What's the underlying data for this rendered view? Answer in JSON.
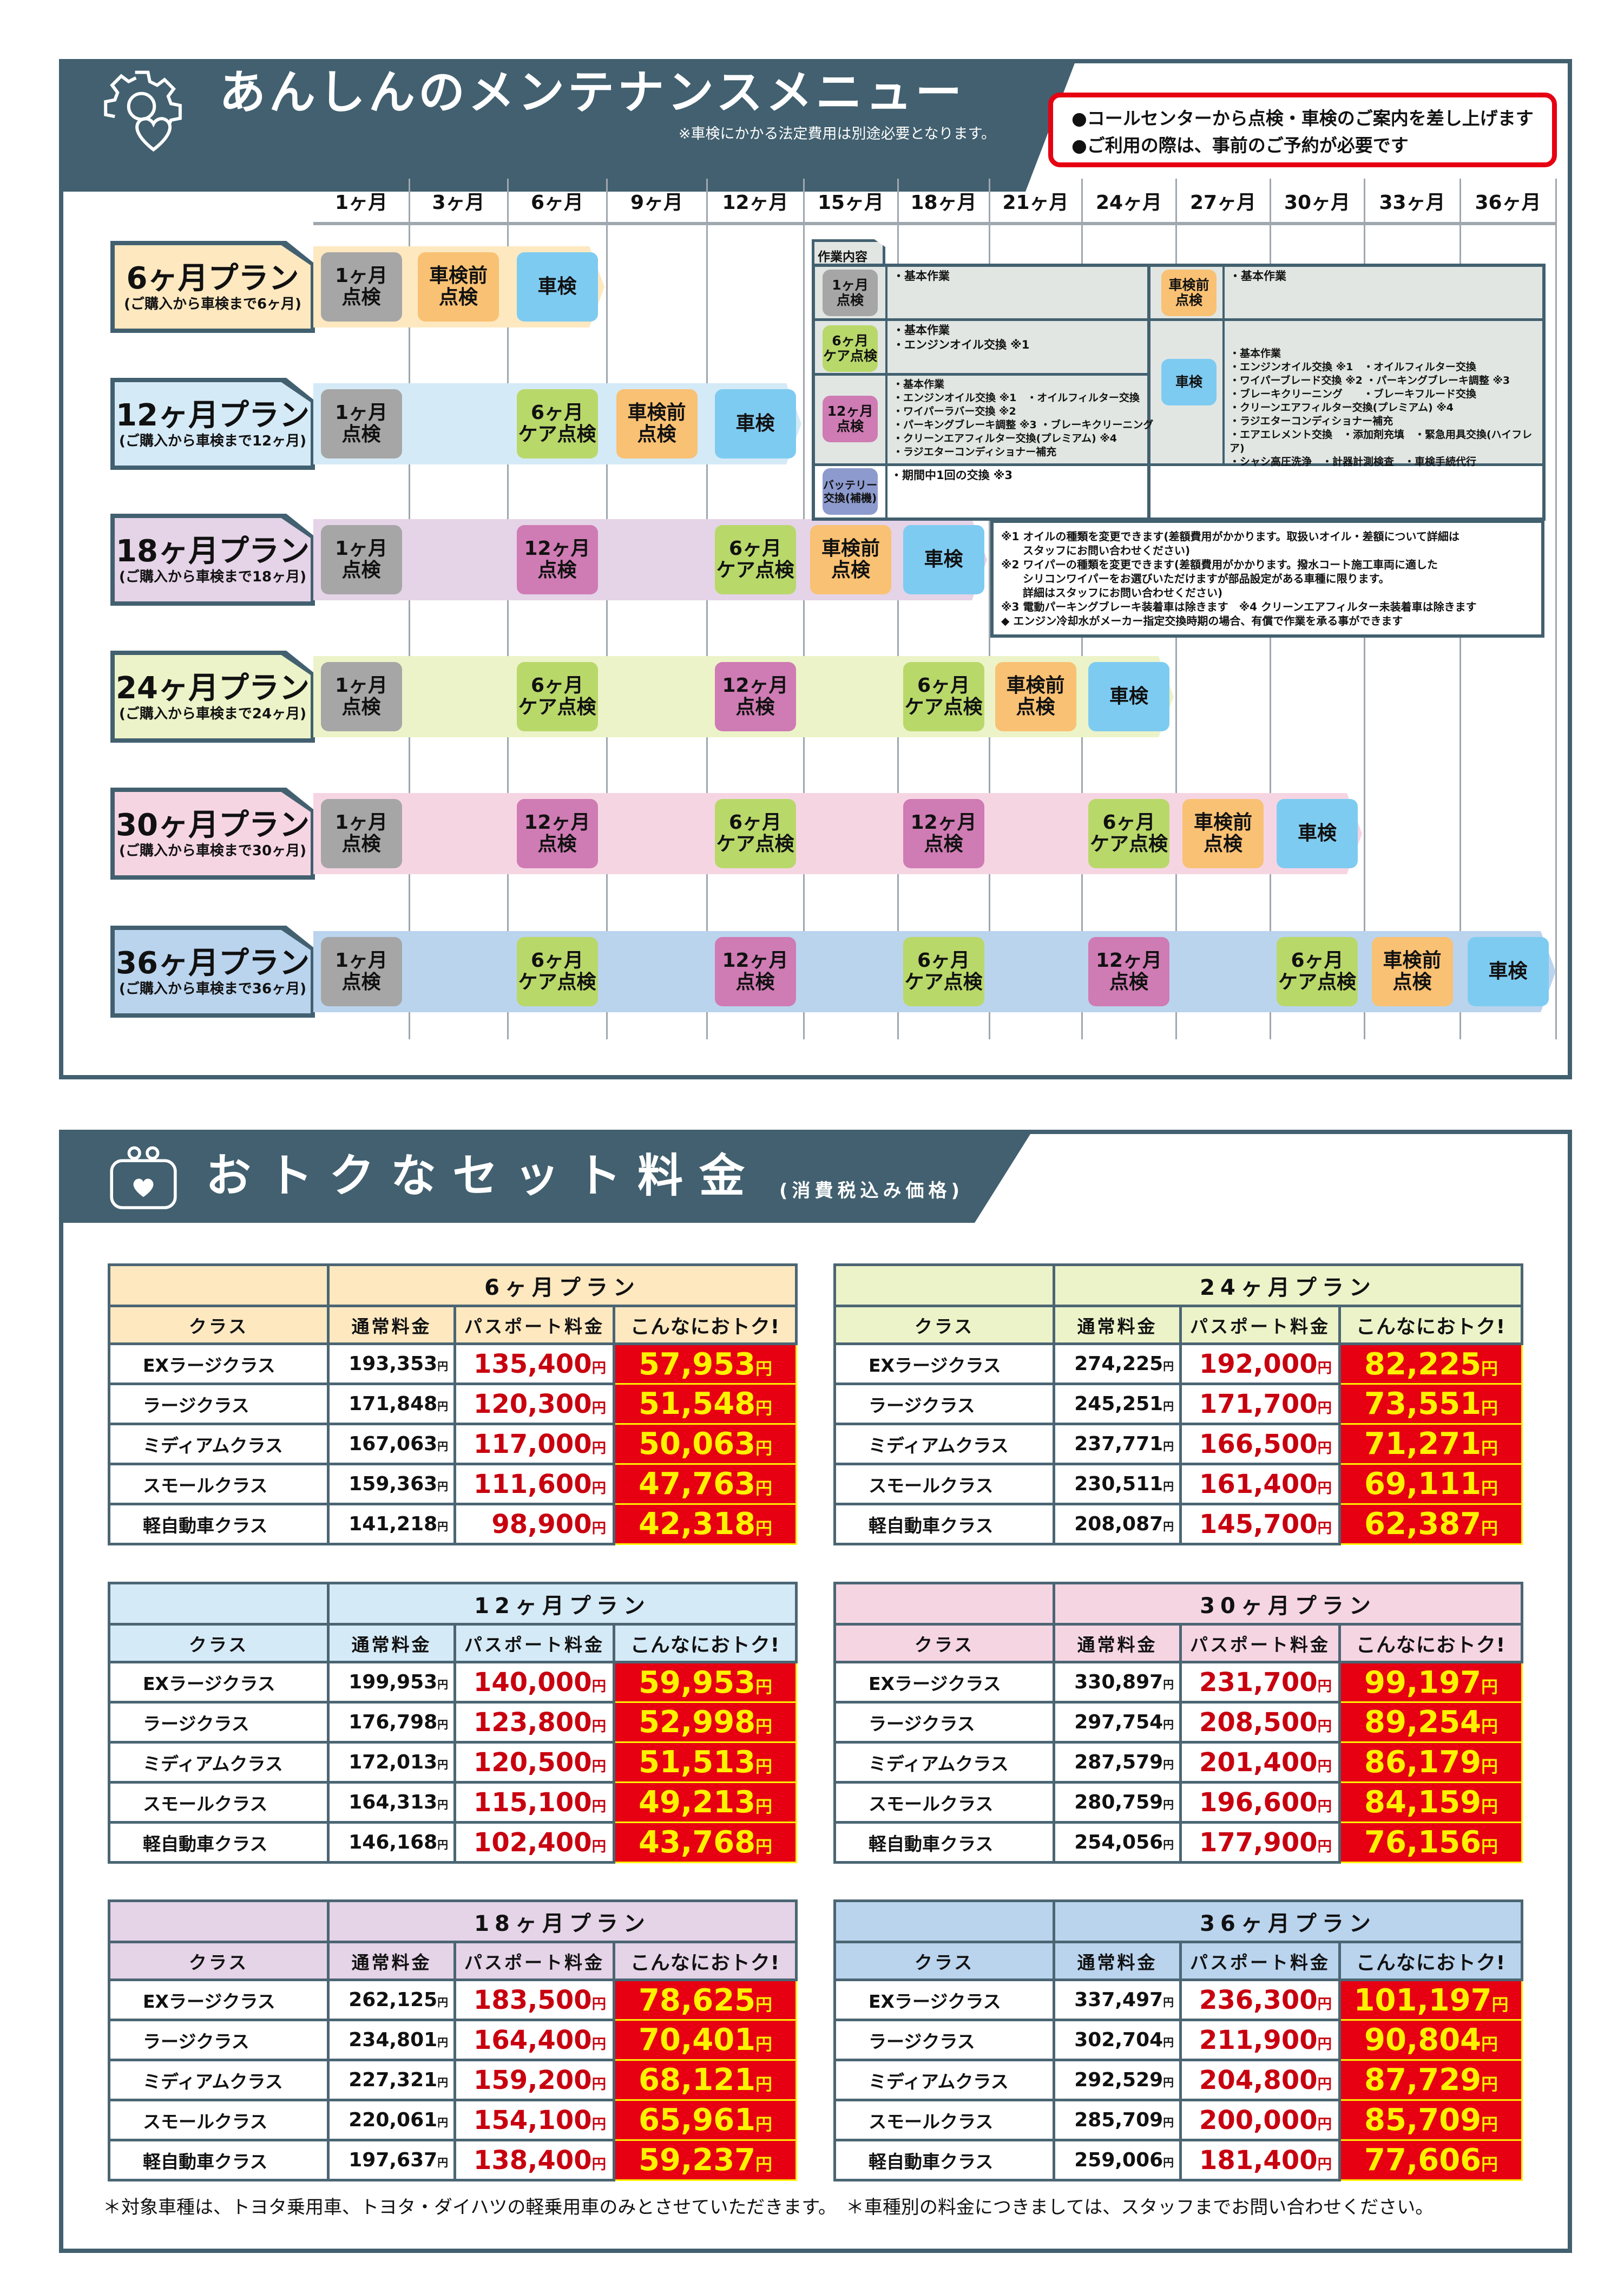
{
  "maintenance": {
    "title": "あんしんのメンテナンスメニュー",
    "subtitle": "※車検にかかる法定費用は別途必要となります。",
    "notice": [
      "●コールセンターから点検・車検のご案内を差し上げます",
      "●ご利用の際は、事前のご予約が必要です"
    ],
    "months": [
      "1ヶ月",
      "3ヶ月",
      "6ヶ月",
      "9ヶ月",
      "12ヶ月",
      "15ヶ月",
      "18ヶ月",
      "21ヶ月",
      "24ヶ月",
      "27ヶ月",
      "30ヶ月",
      "33ヶ月",
      "36ヶ月"
    ],
    "badge_types": {
      "m1": {
        "label": "1ヶ月\n点検",
        "color": "#a6a6a6"
      },
      "care6": {
        "label": "6ヶ月\nケア点検",
        "color": "#b9d86a"
      },
      "m12": {
        "label": "12ヶ月\n点検",
        "color": "#cf7bb4"
      },
      "pre": {
        "label": "車検前\n点検",
        "color": "#f9c173"
      },
      "shaken": {
        "label": "車検",
        "color": "#7ecbf1"
      },
      "battery": {
        "label": "バッテリー\n交換(補機)",
        "color": "#8d9acd"
      }
    },
    "plans": [
      {
        "title": "6ヶ月プラン",
        "sub": "(ご購入から車検まで6ヶ月)",
        "color": "#fde8c0",
        "end": 3,
        "items": [
          [
            1,
            "m1"
          ],
          [
            2,
            "pre"
          ],
          [
            3,
            "shaken"
          ]
        ]
      },
      {
        "title": "12ヶ月プラン",
        "sub": "(ご購入から車検まで12ヶ月)",
        "color": "#d5eaf7",
        "end": 5,
        "items": [
          [
            1,
            "m1"
          ],
          [
            3,
            "care6"
          ],
          [
            4,
            "pre"
          ],
          [
            5,
            "shaken"
          ]
        ]
      },
      {
        "title": "18ヶ月プラン",
        "sub": "(ご購入から車検まで18ヶ月)",
        "color": "#e5d3e7",
        "end": 7,
        "items": [
          [
            1,
            "m1"
          ],
          [
            3,
            "m12"
          ],
          [
            5,
            "care6"
          ],
          [
            6,
            "pre"
          ],
          [
            7,
            "shaken"
          ]
        ]
      },
      {
        "title": "24ヶ月プラン",
        "sub": "(ご購入から車検まで24ヶ月)",
        "color": "#ecf3c8",
        "end": 9,
        "items": [
          [
            1,
            "m1"
          ],
          [
            3,
            "care6"
          ],
          [
            5,
            "m12"
          ],
          [
            7,
            "care6"
          ],
          [
            8,
            "pre"
          ],
          [
            9,
            "shaken"
          ]
        ]
      },
      {
        "title": "30ヶ月プラン",
        "sub": "(ご購入から車検まで30ヶ月)",
        "color": "#f6d5e3",
        "end": 11,
        "items": [
          [
            1,
            "m1"
          ],
          [
            3,
            "m12"
          ],
          [
            5,
            "care6"
          ],
          [
            7,
            "m12"
          ],
          [
            9,
            "care6"
          ],
          [
            10,
            "pre"
          ],
          [
            11,
            "shaken"
          ]
        ]
      },
      {
        "title": "36ヶ月プラン",
        "sub": "(ご購入から車検まで36ヶ月)",
        "color": "#bad4ee",
        "end": 13,
        "items": [
          [
            1,
            "m1"
          ],
          [
            3,
            "care6"
          ],
          [
            5,
            "m12"
          ],
          [
            7,
            "care6"
          ],
          [
            9,
            "m12"
          ],
          [
            11,
            "care6"
          ],
          [
            12,
            "pre"
          ],
          [
            13,
            "shaken"
          ]
        ]
      }
    ],
    "work": {
      "tab": "作業内容",
      "m1": "・基本作業",
      "care6": "・基本作業\n・エンジンオイル交換 ※1",
      "m12": "・基本作業\n・エンジンオイル交換 ※1　・オイルフィルター交換\n・ワイパーラバー交換 ※2\n・パーキングブレーキ調整 ※3 ・ブレーキクリーニング\n・クリーンエアフィルター交換(プレミアム) ※4\n・ラジエターコンディショナー補充",
      "battery": "・期間中1回の交換 ※3",
      "pre": "・基本作業",
      "shaken": "・基本作業\n・エンジンオイル交換 ※1　・オイルフィルター交換\n・ワイパーブレード交換 ※2 ・パーキングブレーキ調整 ※3\n・ブレーキクリーニング　　・ブレーキフルード交換\n・クリーンエアフィルター交換(プレミアム) ※4\n・ラジエターコンディショナー補充\n・エアエレメント交換　・添加剤充填　・緊急用具交換(ハイフレア)\n・シャシ高圧洗浄　・計器計測検査　・車検手続代行"
    },
    "notes": [
      "※1 オイルの種類を変更できます(差額費用がかかります。取扱いオイル・差額について詳細は\n　　スタッフにお問い合わせください)",
      "※2 ワイパーの種類を変更できます(差額費用がかかります。撥水コート施工車両に適した\n　　シリコンワイパーをお選びいただけますが部品設定がある車種に限ります。\n　　詳細はスタッフにお問い合わせください)",
      "※3 電動パーキングブレーキ装着車は除きます　※4 クリーンエアフィルター未装着車は除きます",
      "◆ エンジン冷却水がメーカー指定交換時期の場合、有償で作業を承る事ができます"
    ]
  },
  "pricing": {
    "title": "おトクなセット料金",
    "tax_note": "(消費税込み価格)",
    "headers": [
      "クラス",
      "通常料金",
      "パスポート料金",
      "こんなにおトク!"
    ],
    "yen": "円",
    "classes": [
      "EXラージクラス",
      "ラージクラス",
      "ミディアムクラス",
      "スモールクラス",
      "軽自動車クラス"
    ],
    "tables": [
      {
        "title": "6ヶ月プラン",
        "color": "#fde8c0",
        "rows": [
          [
            "193,353",
            "135,400",
            "57,953"
          ],
          [
            "171,848",
            "120,300",
            "51,548"
          ],
          [
            "167,063",
            "117,000",
            "50,063"
          ],
          [
            "159,363",
            "111,600",
            "47,763"
          ],
          [
            "141,218",
            "98,900",
            "42,318"
          ]
        ]
      },
      {
        "title": "24ヶ月プラン",
        "color": "#ecf3c8",
        "rows": [
          [
            "274,225",
            "192,000",
            "82,225"
          ],
          [
            "245,251",
            "171,700",
            "73,551"
          ],
          [
            "237,771",
            "166,500",
            "71,271"
          ],
          [
            "230,511",
            "161,400",
            "69,111"
          ],
          [
            "208,087",
            "145,700",
            "62,387"
          ]
        ]
      },
      {
        "title": "12ヶ月プラン",
        "color": "#d5eaf7",
        "rows": [
          [
            "199,953",
            "140,000",
            "59,953"
          ],
          [
            "176,798",
            "123,800",
            "52,998"
          ],
          [
            "172,013",
            "120,500",
            "51,513"
          ],
          [
            "164,313",
            "115,100",
            "49,213"
          ],
          [
            "146,168",
            "102,400",
            "43,768"
          ]
        ]
      },
      {
        "title": "30ヶ月プラン",
        "color": "#f6d5e3",
        "rows": [
          [
            "330,897",
            "231,700",
            "99,197"
          ],
          [
            "297,754",
            "208,500",
            "89,254"
          ],
          [
            "287,579",
            "201,400",
            "86,179"
          ],
          [
            "280,759",
            "196,600",
            "84,159"
          ],
          [
            "254,056",
            "177,900",
            "76,156"
          ]
        ]
      },
      {
        "title": "18ヶ月プラン",
        "color": "#e5d3e7",
        "rows": [
          [
            "262,125",
            "183,500",
            "78,625"
          ],
          [
            "234,801",
            "164,400",
            "70,401"
          ],
          [
            "227,321",
            "159,200",
            "68,121"
          ],
          [
            "220,061",
            "154,100",
            "65,961"
          ],
          [
            "197,637",
            "138,400",
            "59,237"
          ]
        ]
      },
      {
        "title": "36ヶ月プラン",
        "color": "#bad4ee",
        "rows": [
          [
            "337,497",
            "236,300",
            "101,197"
          ],
          [
            "302,704",
            "211,900",
            "90,804"
          ],
          [
            "292,529",
            "204,800",
            "87,729"
          ],
          [
            "285,709",
            "200,000",
            "85,709"
          ],
          [
            "259,006",
            "181,400",
            "77,606"
          ]
        ]
      }
    ],
    "footer": [
      "＊対象車種は、トヨタ乗用車、トヨタ・ダイハツの軽乗用車のみとさせていただきます。",
      "＊車種別の料金につきましては、スタッフまでお問い合わせください。"
    ]
  },
  "colors": {
    "dark": "#42606f",
    "red": "#e60012",
    "yellow": "#fff200",
    "price_red": "#c8000f"
  }
}
